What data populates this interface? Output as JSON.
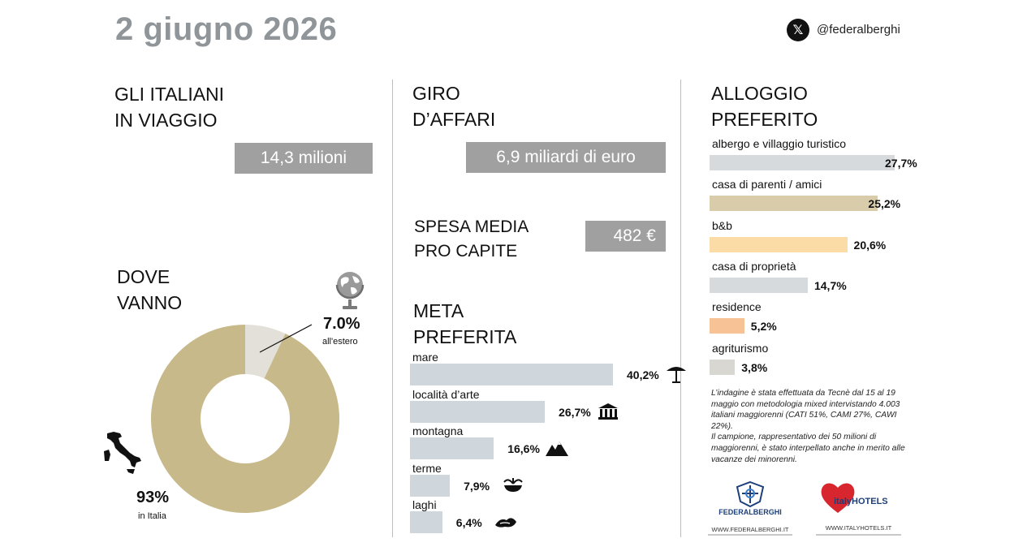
{
  "header": {
    "date": "2 giugno 2026",
    "x_icon": "x-logo-icon",
    "handle": "@federalberghi"
  },
  "viaggio": {
    "title_line1": "GLI ITALIANI",
    "title_line2": "IN VIAGGIO",
    "value": "14,3 milioni"
  },
  "dove": {
    "title_line1": "DOVE",
    "title_line2": "VANNO",
    "estero_value": "7.0%",
    "estero_label": "all'estero",
    "italia_value": "93%",
    "italia_label": "in Italia",
    "globe_icon": "globe-icon",
    "italy_icon": "italy-map-icon"
  },
  "affari": {
    "title_line1": "GIRO",
    "title_line2": "D’AFFARI",
    "value": "6,9 miliardi di euro"
  },
  "spesa": {
    "title_line1": "SPESA MEDIA",
    "title_line2": "PRO CAPITE",
    "value": "482 €"
  },
  "meta": {
    "title_line1": "META",
    "title_line2": "PREFERITA"
  },
  "alloggio": {
    "title_line1": "ALLOGGIO",
    "title_line2": "PREFERITO"
  },
  "colors": {
    "khaki": "#c8b98a",
    "estero": "#e2e0d9",
    "meta_bar": "#cfd6dc",
    "albergo": "#d7dadd",
    "parenti": "#d9ccab",
    "bb": "#fcdca6",
    "proprieta": "#d7dadd",
    "residence": "#f6c296",
    "agriturismo": "#d9d7d1"
  },
  "chart_data": [
    {
      "type": "pie",
      "labels": [
        "in Italia",
        "all'estero"
      ],
      "values": [
        93,
        7.0
      ]
    },
    {
      "type": "bar",
      "categories": [
        "mare",
        "località d’arte",
        "montagna",
        "terme",
        "laghi"
      ],
      "values": [
        40.2,
        26.7,
        16.6,
        7.9,
        6.4
      ],
      "value_labels": [
        "40,2%",
        "26,7%",
        "16,6%",
        "7,9%",
        "6,4%"
      ],
      "icons": [
        "beach-umbrella-icon",
        "museum-icon",
        "mountain-icon",
        "spa-fountain-icon",
        "lake-icon"
      ]
    },
    {
      "type": "bar",
      "categories": [
        "albergo e villaggio turistico",
        "casa di parenti / amici",
        "b&b",
        "casa di proprietà",
        "residence",
        "agriturismo"
      ],
      "values": [
        27.7,
        25.2,
        20.6,
        14.7,
        5.2,
        3.8
      ],
      "value_labels": [
        "27,7%",
        "25,2%",
        "20,6%",
        "14,7%",
        "5,2%",
        "3,8%"
      ]
    }
  ],
  "note": {
    "text1": "L’indagine è stata effettuata da Tecnè dal 15 al 19 maggio con metodologia mixed intervistando 4.003 italiani maggiorenni (CATI 51%, CAMI 27%, CAWI 22%).",
    "text2": "Il campione, rappresentativo dei 50 milioni di maggiorenni, è stato interpellato anche in merito alle vacanze dei minorenni."
  },
  "logos": {
    "federalberghi_name": "FEDERALBERGHI",
    "federalberghi_url": "WWW.FEDERALBERGHI.IT",
    "italyhotels_name": "italyHOTELS",
    "italyhotels_url": "WWW.ITALYHOTELS.IT"
  }
}
